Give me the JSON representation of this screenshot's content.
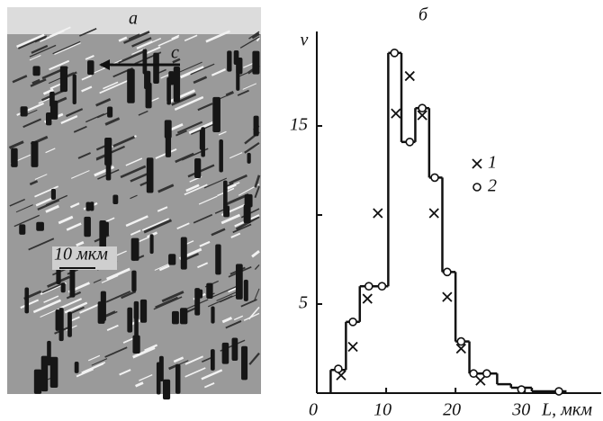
{
  "panel_a": {
    "label": "a",
    "axis_label": "c",
    "scale_label": "10 мкм"
  },
  "chart_data": {
    "type": "step-scatter",
    "title": "б",
    "y_label": "ν",
    "x_label": "L, мкм",
    "xlim": [
      0,
      41
    ],
    "ylim": [
      0,
      20
    ],
    "xticks": [
      0,
      10,
      20,
      30
    ],
    "yticks": [
      5,
      15
    ],
    "minor_yticks": [
      10
    ],
    "steps": {
      "bins": [
        2,
        4.2,
        6.2,
        8,
        10.3,
        12.2,
        14.2,
        16.2,
        18.1,
        20,
        22,
        24,
        26,
        28,
        31,
        36
      ],
      "counts": [
        1.3,
        4,
        6,
        6,
        19.1,
        14.1,
        16,
        12.1,
        6.8,
        2.9,
        1.1,
        1.1,
        0.5,
        0.3,
        0.1
      ]
    },
    "series": [
      {
        "name": "1",
        "marker": "cross",
        "color": "#111111",
        "x": [
          3.5,
          5.2,
          7.3,
          8.8,
          11.4,
          13.4,
          15.2,
          16.9,
          18.8,
          20.8,
          23.6
        ],
        "values": [
          1.0,
          2.6,
          5.3,
          10.1,
          15.7,
          17.8,
          15.6,
          10.1,
          5.4,
          2.5,
          0.7
        ]
      },
      {
        "name": "2",
        "marker": "circle",
        "color": "#111111",
        "x": [
          3.1,
          5.2,
          7.5,
          9.4,
          11.2,
          13.4,
          15.2,
          17.0,
          18.8,
          20.8,
          22.6,
          24.5,
          29.5,
          34.9
        ],
        "values": [
          1.36,
          4.0,
          6.0,
          6.0,
          19.1,
          14.1,
          16.0,
          12.1,
          6.8,
          2.9,
          1.1,
          1.1,
          0.2,
          0.1
        ]
      }
    ]
  }
}
